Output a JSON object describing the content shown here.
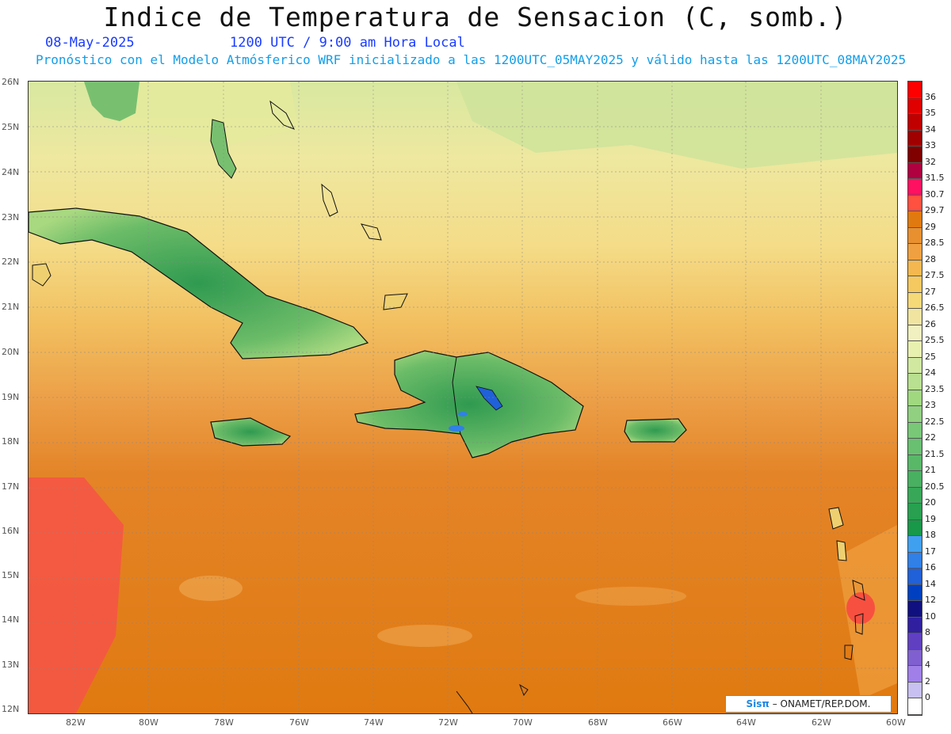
{
  "header": {
    "title": "Indice de Temperatura de Sensacion (C, somb.)",
    "date": "08-May-2025",
    "time": "1200 UTC / 9:00 am Hora Local",
    "forecast_note": "Pronóstico con el Modelo Atmósferico WRF inicializado a las 1200UTC_05MAY2025 y válido hasta las  1200UTC_08MAY2025"
  },
  "map": {
    "lat_labels": [
      "26N",
      "25N",
      "24N",
      "23N",
      "22N",
      "21N",
      "20N",
      "19N",
      "18N",
      "17N",
      "16N",
      "15N",
      "14N",
      "13N",
      "12N"
    ],
    "lon_labels": [
      "82W",
      "80W",
      "78W",
      "76W",
      "74W",
      "72W",
      "70W",
      "68W",
      "66W",
      "64W",
      "62W",
      "60W"
    ],
    "colors": {
      "ocean_warm": "#e07a10",
      "ocean_mid": "#f0a040",
      "north_mild": "#f0e090",
      "north_cool": "#c8e090",
      "land_green": "#50a850",
      "hot_red": "#f85040"
    }
  },
  "colorbar": {
    "labels": [
      "36",
      "35",
      "34",
      "33",
      "32",
      "31.5",
      "30.7",
      "29.7",
      "29",
      "28.5",
      "28",
      "27.5",
      "27",
      "26.5",
      "26",
      "25.5",
      "25",
      "24",
      "23.5",
      "23",
      "22.5",
      "22",
      "21.5",
      "21",
      "20.5",
      "20",
      "19",
      "18",
      "17",
      "16",
      "14",
      "12",
      "10",
      "8",
      "6",
      "4",
      "2",
      "0"
    ],
    "colors": [
      "#ff0000",
      "#e00000",
      "#c00000",
      "#a00000",
      "#800000",
      "#b00040",
      "#ff1060",
      "#ff5040",
      "#e07a10",
      "#e89030",
      "#f0a040",
      "#f5b850",
      "#f5c860",
      "#f5d878",
      "#f0e4a0",
      "#f0f0c0",
      "#e8f0b0",
      "#d0e8a0",
      "#b8e090",
      "#a0d880",
      "#90d080",
      "#78c878",
      "#68c070",
      "#58b868",
      "#48b060",
      "#38a858",
      "#28a050",
      "#189848",
      "#40a0f0",
      "#3080e8",
      "#2060d8",
      "#0040c0",
      "#101080",
      "#3020a0",
      "#6040c0",
      "#8060d0",
      "#a080e8",
      "#c8c0f0",
      "#ffffff"
    ]
  },
  "credit": {
    "logo": "Sisπ",
    "text": " – ONAMET/REP.DOM."
  }
}
